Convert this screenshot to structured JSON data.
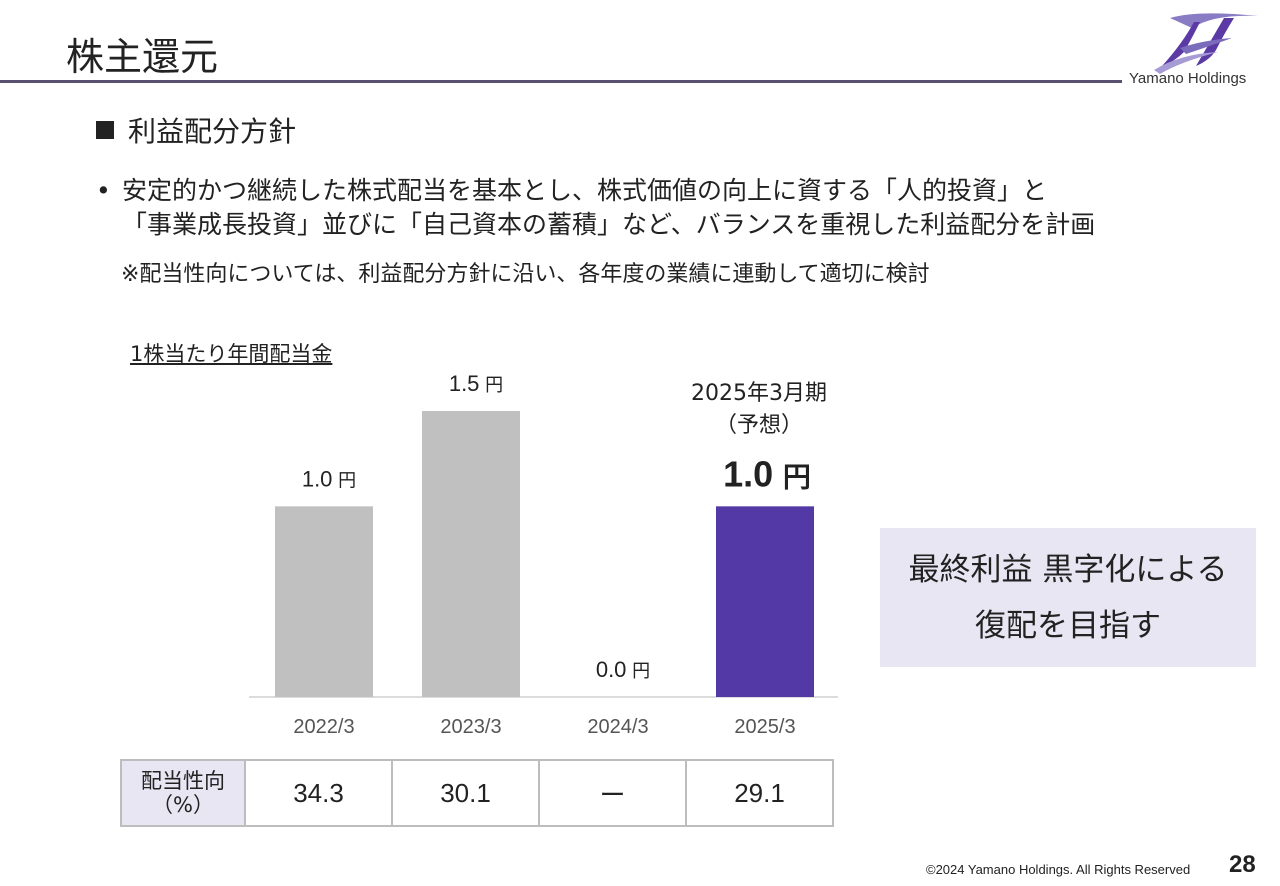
{
  "header": {
    "title": "株主還元",
    "company_logo_text": "Yamano Holdings",
    "logo_icon": "yamano-logo-icon",
    "accent_color": "#5b3aa6"
  },
  "section": {
    "heading": "利益配分方針"
  },
  "bullet": {
    "line1": "安定的かつ継続した株式配当を基本とし、株式価値の向上に資する「人的投資」と",
    "line2": "「事業成長投資」並びに「自己資本の蓄積」など、バランスを重視した利益配分を計画",
    "note": "※配当性向については、利益配分方針に沿い、各年度の業績に連動して適切に検討"
  },
  "chart_data": {
    "type": "bar",
    "title": "1株当たり年間配当金",
    "categories": [
      "2022/3",
      "2023/3",
      "2024/3",
      "2025/3"
    ],
    "values": [
      1.0,
      1.5,
      0.0,
      1.0
    ],
    "value_labels": [
      "1.0",
      "1.5",
      "0.0",
      "1.0"
    ],
    "unit": "円",
    "forecast_label_line1": "2025年3月期",
    "forecast_label_line2": "（予想）",
    "bar_color": "#c0c0c0",
    "forecast_bar_color": "#5239a6",
    "ylim": [
      0,
      1.5
    ]
  },
  "payout_table": {
    "header_line1": "配当性向",
    "header_line2": "（%）",
    "values": [
      "34.3",
      "30.1",
      "ー",
      "29.1"
    ]
  },
  "callout": {
    "line1": "最終利益 黒字化による",
    "line2": "復配を目指す"
  },
  "footer": {
    "copyright": "©2024 Yamano Holdings. All Rights Reserved",
    "page_number": "28"
  }
}
